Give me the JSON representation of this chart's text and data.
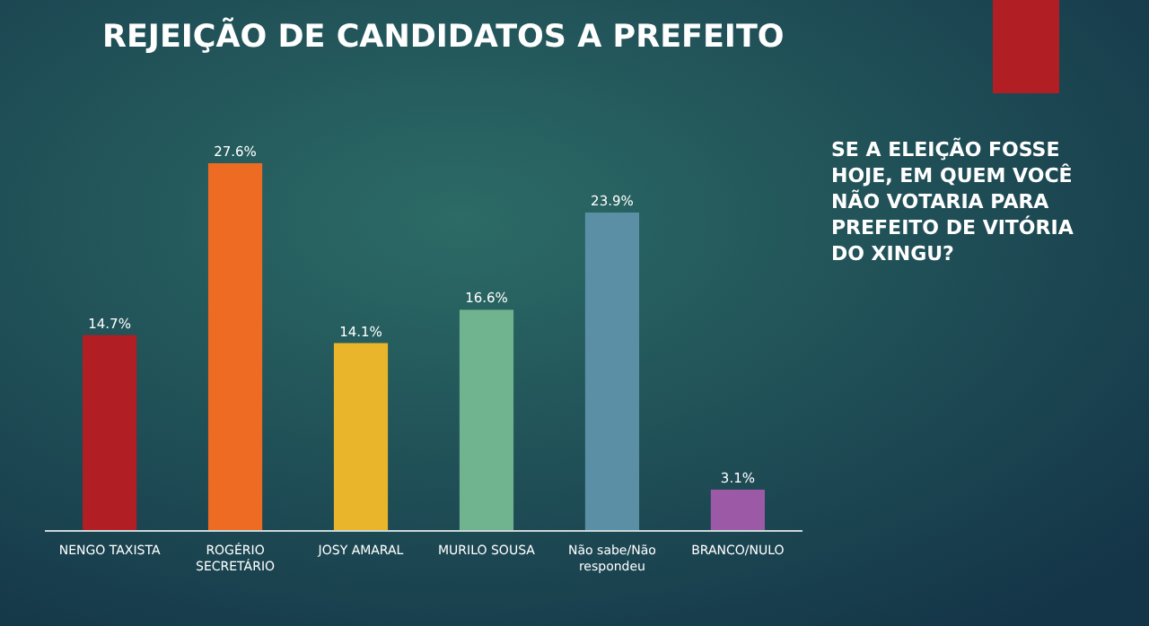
{
  "chart_data": {
    "type": "bar",
    "title": "REJEIÇÃO DE CANDIDATOS A PREFEITO",
    "subtitle": "SE A ELEIÇÃO FOSSE HOJE, EM QUEM VOCÊ NÃO VOTARIA PARA PREFEITO DE VITÓRIA DO XINGU?",
    "categories": [
      "NENGO TAXISTA",
      "ROGÉRIO SECRETÁRIO",
      "JOSY AMARAL",
      "MURILO SOUSA",
      "Não sabe/Não respondeu",
      "BRANCO/NULO"
    ],
    "values": [
      14.7,
      27.6,
      14.1,
      16.6,
      23.9,
      3.1
    ],
    "colors": [
      "#b11f24",
      "#ed6b23",
      "#e9b52a",
      "#6fb38f",
      "#5a8fa6",
      "#9c5aa6"
    ],
    "value_labels": [
      "14.7%",
      "27.6%",
      "14.1%",
      "16.6%",
      "23.9%",
      "3.1%"
    ]
  }
}
